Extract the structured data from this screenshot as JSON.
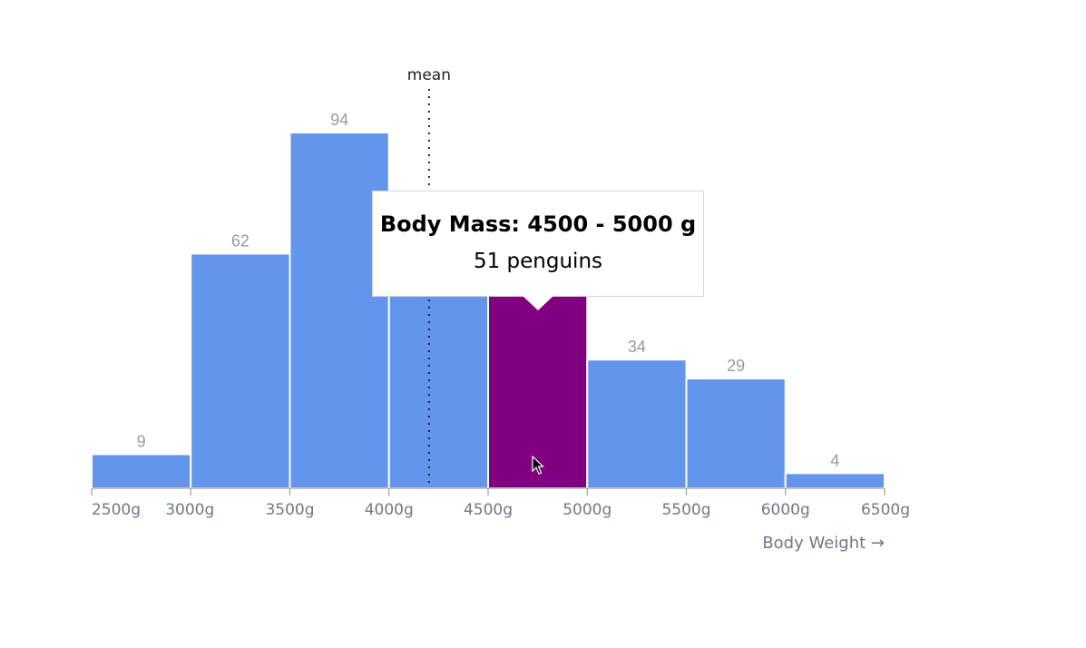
{
  "chart_data": {
    "type": "bar",
    "bins": [
      {
        "range": "2500 - 3000",
        "x0": 2500,
        "x1": 3000,
        "count": 9
      },
      {
        "range": "3000 - 3500",
        "x0": 3000,
        "x1": 3500,
        "count": 62
      },
      {
        "range": "3500 - 4000",
        "x0": 3500,
        "x1": 4000,
        "count": 94
      },
      {
        "range": "4000 - 4500",
        "x0": 4000,
        "x1": 4500,
        "count": 57
      },
      {
        "range": "4500 - 5000",
        "x0": 4500,
        "x1": 5000,
        "count": 51
      },
      {
        "range": "5000 - 5500",
        "x0": 5000,
        "x1": 5500,
        "count": 34
      },
      {
        "range": "5500 - 6000",
        "x0": 5500,
        "x1": 6000,
        "count": 29
      },
      {
        "range": "6000 - 6500",
        "x0": 6000,
        "x1": 6500,
        "count": 4
      }
    ],
    "ticks": [
      {
        "value": 2500,
        "label": "2500g"
      },
      {
        "value": 3000,
        "label": "3000g"
      },
      {
        "value": 3500,
        "label": "3500g"
      },
      {
        "value": 4000,
        "label": "4000g"
      },
      {
        "value": 4500,
        "label": "4500g"
      },
      {
        "value": 5000,
        "label": "5000g"
      },
      {
        "value": 5500,
        "label": "5500g"
      },
      {
        "value": 6000,
        "label": "6000g"
      },
      {
        "value": 6500,
        "label": "6500g"
      }
    ],
    "xlabel": "Body Weight →",
    "xlim": [
      2500,
      6500
    ],
    "mean": {
      "label": "mean",
      "value": 4202
    },
    "highlighted_bin": 4,
    "colors": {
      "bar": "#6495ed",
      "highlight": "#800080"
    },
    "grid": false
  },
  "tooltip": {
    "title": "Body Mass: 4500 - 5000 g",
    "value": "51 penguins"
  }
}
